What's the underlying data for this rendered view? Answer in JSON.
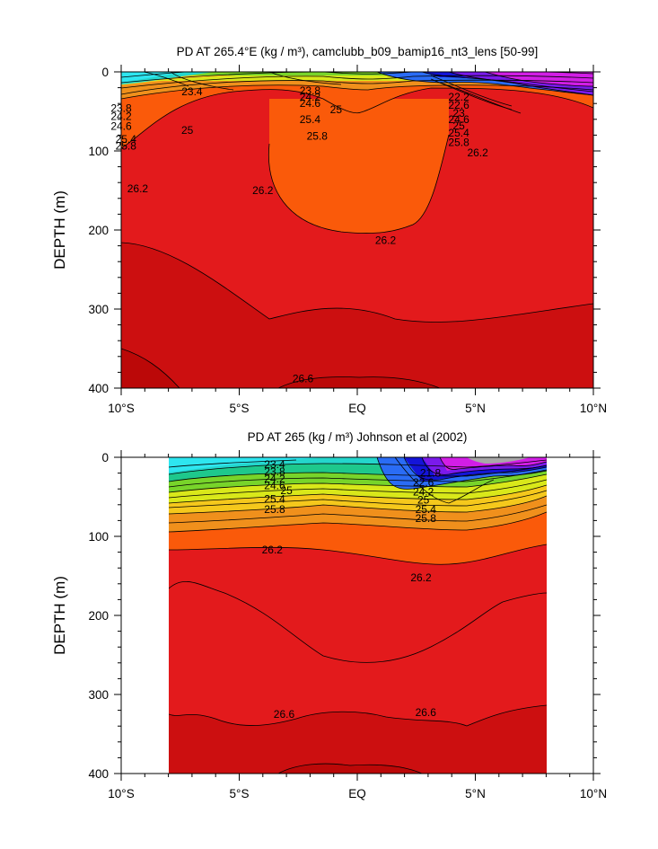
{
  "chart_data": [
    {
      "type": "contour",
      "title": "PD AT 265.4°E (kg / m³), camclubb_b09_bamip16_nt3_lens [50-99]",
      "ylabel": "DEPTH (m)",
      "x_ticks": [
        "10°S",
        "5°S",
        "EQ",
        "5°N",
        "10°N"
      ],
      "x_values": [
        -10,
        -5,
        0,
        5,
        10
      ],
      "xlim": [
        -10,
        10
      ],
      "y_ticks": [
        "0",
        "100",
        "200",
        "300",
        "400"
      ],
      "y_values": [
        0,
        100,
        200,
        300,
        400
      ],
      "ylim": [
        0,
        400
      ],
      "y_reversed": true,
      "contour_labels": [
        {
          "text": "23.4",
          "x": -7.0,
          "y": 25
        },
        {
          "text": "23.8",
          "x": -2.0,
          "y": 24
        },
        {
          "text": "23.8",
          "x": -10.0,
          "y": 46
        },
        {
          "text": "24.2",
          "x": -2.0,
          "y": 32
        },
        {
          "text": "24.2",
          "x": -10.0,
          "y": 56
        },
        {
          "text": "24.6",
          "x": -2.0,
          "y": 40
        },
        {
          "text": "24.6",
          "x": -10.0,
          "y": 69
        },
        {
          "text": "25",
          "x": -0.9,
          "y": 48
        },
        {
          "text": "25",
          "x": -7.2,
          "y": 74
        },
        {
          "text": "25.4",
          "x": -2.0,
          "y": 60
        },
        {
          "text": "25.4",
          "x": -9.8,
          "y": 85
        },
        {
          "text": "25.8",
          "x": -1.7,
          "y": 81
        },
        {
          "text": "25.8",
          "x": -9.8,
          "y": 94
        },
        {
          "text": "26.2",
          "x": -9.3,
          "y": 148
        },
        {
          "text": "26.2",
          "x": -4.0,
          "y": 150
        },
        {
          "text": "26.2",
          "x": 1.2,
          "y": 213
        },
        {
          "text": "26.2",
          "x": 5.1,
          "y": 102
        },
        {
          "text": "22.2",
          "x": 4.3,
          "y": 32
        },
        {
          "text": "22.6",
          "x": 4.3,
          "y": 42
        },
        {
          "text": "23",
          "x": 4.3,
          "y": 52
        },
        {
          "text": "24.6",
          "x": 4.3,
          "y": 60
        },
        {
          "text": "25",
          "x": 4.3,
          "y": 68
        },
        {
          "text": "25.4",
          "x": 4.3,
          "y": 77
        },
        {
          "text": "25.8",
          "x": 4.3,
          "y": 89
        },
        {
          "text": "26.6",
          "x": -2.3,
          "y": 388
        }
      ]
    },
    {
      "type": "contour",
      "title": "PD AT 265 (kg / m³) Johnson et al (2002)",
      "ylabel": "DEPTH (m)",
      "x_ticks": [
        "10°S",
        "5°S",
        "EQ",
        "5°N",
        "10°N"
      ],
      "x_values": [
        -10,
        -5,
        0,
        5,
        10
      ],
      "xlim": [
        -10,
        10
      ],
      "data_x_range": [
        -8,
        8
      ],
      "y_ticks": [
        "0",
        "100",
        "200",
        "300",
        "400"
      ],
      "y_values": [
        0,
        100,
        200,
        300,
        400
      ],
      "ylim": [
        0,
        400
      ],
      "y_reversed": true,
      "contour_labels": [
        {
          "text": "23.4",
          "x": -3.5,
          "y": 9
        },
        {
          "text": "23.8",
          "x": -3.5,
          "y": 18
        },
        {
          "text": "24.2",
          "x": -3.5,
          "y": 27
        },
        {
          "text": "24.6",
          "x": -3.5,
          "y": 36
        },
        {
          "text": "25",
          "x": -3.0,
          "y": 42
        },
        {
          "text": "25.4",
          "x": -3.5,
          "y": 53
        },
        {
          "text": "25.8",
          "x": -3.5,
          "y": 66
        },
        {
          "text": "26.2",
          "x": -3.6,
          "y": 117
        },
        {
          "text": "26.2",
          "x": 2.7,
          "y": 152
        },
        {
          "text": "26.6",
          "x": -3.1,
          "y": 325
        },
        {
          "text": "26.6",
          "x": 2.9,
          "y": 323
        },
        {
          "text": "21.8",
          "x": 3.1,
          "y": 20
        },
        {
          "text": "22.6",
          "x": 2.8,
          "y": 32
        },
        {
          "text": "24.2",
          "x": 2.8,
          "y": 44
        },
        {
          "text": "25",
          "x": 2.8,
          "y": 54
        },
        {
          "text": "25.4",
          "x": 2.9,
          "y": 66
        },
        {
          "text": "25.8",
          "x": 2.9,
          "y": 77
        }
      ]
    }
  ]
}
